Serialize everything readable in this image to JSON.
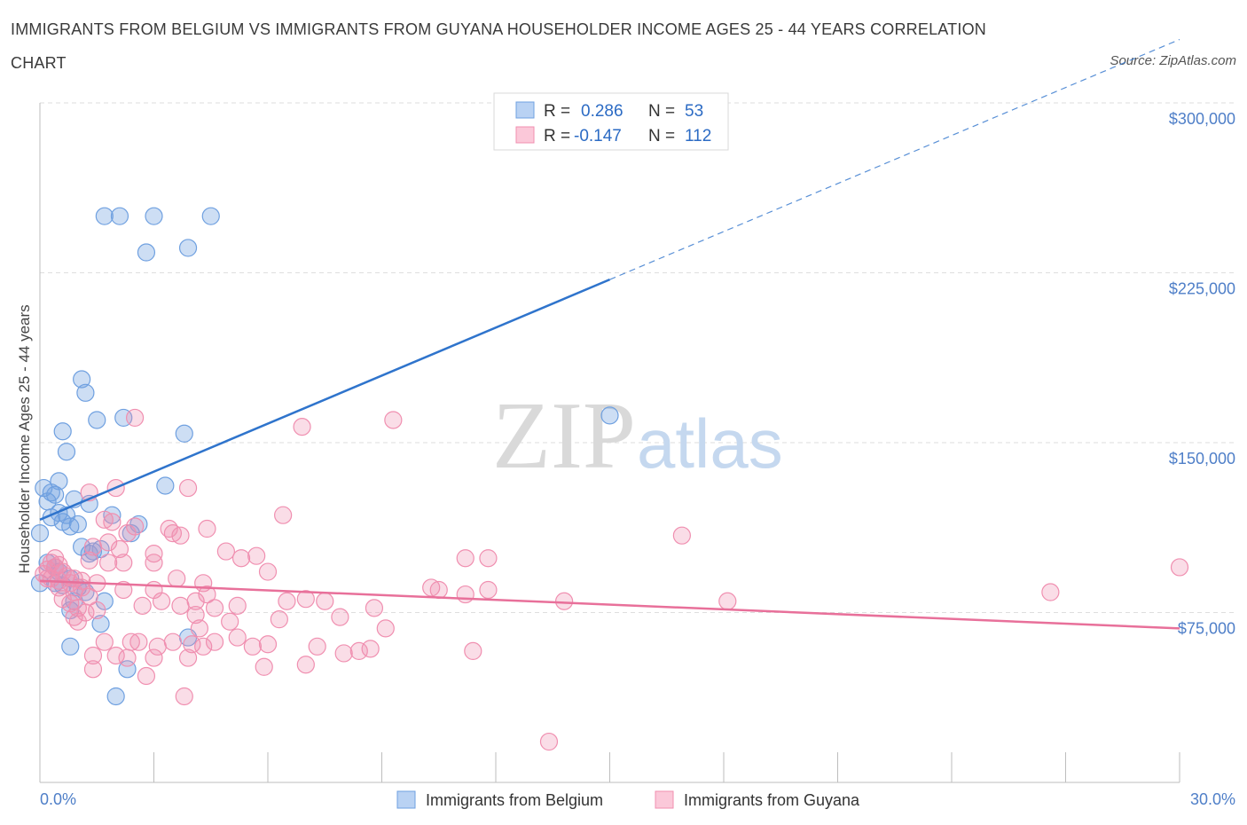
{
  "title": "IMMIGRANTS FROM BELGIUM VS IMMIGRANTS FROM GUYANA HOUSEHOLDER INCOME AGES 25 - 44 YEARS CORRELATION CHART",
  "source": "Source: ZipAtlas.com",
  "watermark": {
    "zip": "ZIP",
    "atlas": "atlas"
  },
  "legend": {
    "r_label": "R =",
    "n_label": "N =",
    "rows": [
      {
        "series": "Immigrants from Belgium",
        "r": "0.286",
        "n": "53"
      },
      {
        "series": "Immigrants from Guyana",
        "r": "-0.147",
        "n": "112"
      }
    ]
  },
  "chart_data": {
    "type": "scatter",
    "title": "IMMIGRANTS FROM BELGIUM VS IMMIGRANTS FROM GUYANA HOUSEHOLDER INCOME AGES 25 - 44 YEARS CORRELATION CHART",
    "xlabel": "",
    "ylabel": "Householder Income Ages 25 - 44 years",
    "xlim": [
      0,
      30
    ],
    "ylim": [
      0,
      300000
    ],
    "x_tick_labels": [
      "0.0%",
      "30.0%"
    ],
    "y_ticks": [
      75000,
      150000,
      225000,
      300000
    ],
    "y_tick_labels": [
      "$75,000",
      "$150,000",
      "$225,000",
      "$300,000"
    ],
    "grid": true,
    "legend_position": "top-center",
    "colors": {
      "belgium": "#6fa0e0",
      "guyana": "#f08fb0",
      "belgium_line": "#2f74cc",
      "guyana_line": "#e8709a"
    },
    "series": [
      {
        "name": "Immigrants from Belgium",
        "color": "#6fa0e0",
        "trend": {
          "x": [
            0,
            15
          ],
          "y": [
            116000,
            222000
          ],
          "dashed_to": [
            30,
            328000
          ]
        },
        "points": [
          [
            1.7,
            250000
          ],
          [
            2.1,
            250000
          ],
          [
            3.0,
            250000
          ],
          [
            4.5,
            250000
          ],
          [
            2.8,
            234000
          ],
          [
            3.9,
            236000
          ],
          [
            1.1,
            178000
          ],
          [
            1.2,
            172000
          ],
          [
            1.5,
            160000
          ],
          [
            2.2,
            161000
          ],
          [
            0.6,
            155000
          ],
          [
            3.8,
            154000
          ],
          [
            15.0,
            162000
          ],
          [
            0.7,
            146000
          ],
          [
            0.1,
            130000
          ],
          [
            0.5,
            133000
          ],
          [
            0.3,
            128000
          ],
          [
            0.4,
            127000
          ],
          [
            3.3,
            131000
          ],
          [
            0.2,
            124000
          ],
          [
            0.9,
            125000
          ],
          [
            0.5,
            119000
          ],
          [
            0.7,
            118000
          ],
          [
            1.3,
            123000
          ],
          [
            0.3,
            117000
          ],
          [
            0.6,
            115000
          ],
          [
            1.0,
            114000
          ],
          [
            1.9,
            118000
          ],
          [
            2.6,
            114000
          ],
          [
            0.8,
            113000
          ],
          [
            0.0,
            110000
          ],
          [
            2.4,
            110000
          ],
          [
            1.1,
            104000
          ],
          [
            1.4,
            102000
          ],
          [
            1.6,
            103000
          ],
          [
            1.3,
            101000
          ],
          [
            0.2,
            97000
          ],
          [
            0.4,
            95000
          ],
          [
            0.5,
            93000
          ],
          [
            0.8,
            90000
          ],
          [
            0.4,
            88000
          ],
          [
            0.6,
            87000
          ],
          [
            1.0,
            86000
          ],
          [
            1.2,
            84000
          ],
          [
            0.9,
            80000
          ],
          [
            1.7,
            80000
          ],
          [
            0.8,
            76000
          ],
          [
            1.6,
            70000
          ],
          [
            0.8,
            60000
          ],
          [
            3.9,
            64000
          ],
          [
            2.3,
            50000
          ],
          [
            2.0,
            38000
          ],
          [
            0.0,
            88000
          ]
        ]
      },
      {
        "name": "Immigrants from Guyana",
        "color": "#f08fb0",
        "trend": {
          "x": [
            0,
            30
          ],
          "y": [
            89000,
            68000
          ]
        },
        "points": [
          [
            2.5,
            161000
          ],
          [
            6.9,
            157000
          ],
          [
            9.3,
            160000
          ],
          [
            2.0,
            130000
          ],
          [
            3.9,
            130000
          ],
          [
            1.3,
            128000
          ],
          [
            1.7,
            116000
          ],
          [
            1.9,
            115000
          ],
          [
            2.5,
            113000
          ],
          [
            3.4,
            112000
          ],
          [
            4.4,
            112000
          ],
          [
            6.4,
            118000
          ],
          [
            3.7,
            109000
          ],
          [
            2.3,
            110000
          ],
          [
            1.4,
            104000
          ],
          [
            1.8,
            106000
          ],
          [
            2.1,
            103000
          ],
          [
            3.0,
            101000
          ],
          [
            4.9,
            102000
          ],
          [
            5.3,
            99000
          ],
          [
            5.7,
            100000
          ],
          [
            11.8,
            99000
          ],
          [
            11.2,
            99000
          ],
          [
            16.9,
            109000
          ],
          [
            30.0,
            95000
          ],
          [
            1.3,
            98000
          ],
          [
            1.8,
            97000
          ],
          [
            2.2,
            97000
          ],
          [
            3.0,
            97000
          ],
          [
            6.0,
            93000
          ],
          [
            0.3,
            97000
          ],
          [
            0.5,
            96000
          ],
          [
            0.4,
            95000
          ],
          [
            0.2,
            94000
          ],
          [
            0.6,
            93000
          ],
          [
            0.1,
            92000
          ],
          [
            0.7,
            91000
          ],
          [
            0.9,
            90000
          ],
          [
            1.1,
            89000
          ],
          [
            0.3,
            90000
          ],
          [
            0.5,
            89000
          ],
          [
            0.8,
            88000
          ],
          [
            1.5,
            88000
          ],
          [
            3.6,
            90000
          ],
          [
            4.3,
            88000
          ],
          [
            1.1,
            86000
          ],
          [
            2.2,
            85000
          ],
          [
            3.0,
            85000
          ],
          [
            0.5,
            86000
          ],
          [
            0.9,
            84000
          ],
          [
            1.3,
            82000
          ],
          [
            0.6,
            81000
          ],
          [
            0.8,
            79000
          ],
          [
            1.0,
            77000
          ],
          [
            1.2,
            75000
          ],
          [
            1.5,
            76000
          ],
          [
            0.9,
            73000
          ],
          [
            1.0,
            71000
          ],
          [
            2.7,
            78000
          ],
          [
            3.2,
            80000
          ],
          [
            3.7,
            78000
          ],
          [
            4.1,
            80000
          ],
          [
            4.4,
            83000
          ],
          [
            4.6,
            77000
          ],
          [
            5.2,
            78000
          ],
          [
            6.5,
            80000
          ],
          [
            7.0,
            81000
          ],
          [
            7.5,
            80000
          ],
          [
            8.8,
            77000
          ],
          [
            10.3,
            86000
          ],
          [
            10.5,
            85000
          ],
          [
            11.2,
            83000
          ],
          [
            11.8,
            85000
          ],
          [
            13.8,
            80000
          ],
          [
            18.1,
            80000
          ],
          [
            26.6,
            84000
          ],
          [
            4.1,
            74000
          ],
          [
            4.2,
            68000
          ],
          [
            5.0,
            71000
          ],
          [
            6.3,
            72000
          ],
          [
            7.9,
            73000
          ],
          [
            9.1,
            68000
          ],
          [
            1.7,
            62000
          ],
          [
            2.4,
            62000
          ],
          [
            2.6,
            62000
          ],
          [
            3.1,
            60000
          ],
          [
            3.5,
            62000
          ],
          [
            4.0,
            61000
          ],
          [
            4.3,
            60000
          ],
          [
            4.6,
            62000
          ],
          [
            5.2,
            64000
          ],
          [
            5.6,
            60000
          ],
          [
            6.0,
            61000
          ],
          [
            7.3,
            60000
          ],
          [
            8.0,
            57000
          ],
          [
            8.7,
            59000
          ],
          [
            1.4,
            56000
          ],
          [
            2.0,
            56000
          ],
          [
            2.3,
            55000
          ],
          [
            3.0,
            55000
          ],
          [
            3.9,
            55000
          ],
          [
            5.9,
            51000
          ],
          [
            7.0,
            52000
          ],
          [
            8.4,
            58000
          ],
          [
            11.4,
            58000
          ],
          [
            1.4,
            50000
          ],
          [
            2.8,
            47000
          ],
          [
            3.8,
            38000
          ],
          [
            13.4,
            18000
          ],
          [
            0.2,
            90000
          ],
          [
            0.4,
            99000
          ],
          [
            3.5,
            110000
          ]
        ]
      }
    ]
  }
}
